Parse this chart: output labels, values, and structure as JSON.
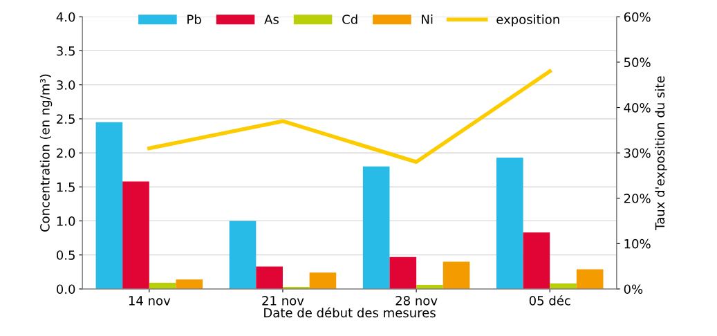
{
  "chart_data": {
    "type": "bar",
    "xlabel": "Date de début des mesures",
    "ylabel": "Concentration (en ng/m³)",
    "y2label": "Taux d'exposition du site",
    "categories": [
      "14 nov",
      "21 nov",
      "28 nov",
      "05 déc"
    ],
    "series": [
      {
        "name": "Pb",
        "color": "#29bbe8",
        "values": [
          2.45,
          1.0,
          1.8,
          1.93
        ]
      },
      {
        "name": "As",
        "color": "#e00534",
        "values": [
          1.58,
          0.33,
          0.47,
          0.83
        ]
      },
      {
        "name": "Cd",
        "color": "#b8cf0a",
        "values": [
          0.09,
          0.03,
          0.06,
          0.08
        ]
      },
      {
        "name": "Ni",
        "color": "#f49b00",
        "values": [
          0.14,
          0.24,
          0.4,
          0.29
        ]
      },
      {
        "name": "exposition",
        "type": "line",
        "axis": "y2",
        "color": "#fdcc00",
        "values": [
          31,
          37,
          28,
          48
        ]
      }
    ],
    "ylim": [
      0,
      4
    ],
    "yticks": [
      {
        "value": 0,
        "label": "0.0"
      },
      0.5,
      {
        "value": 1,
        "label": "1.0"
      },
      1.5,
      {
        "value": 2,
        "label": "2.0"
      },
      2.5,
      {
        "value": 3,
        "label": "3.0"
      },
      3.5,
      {
        "value": 4,
        "label": "4.0"
      }
    ],
    "y2lim": [
      0,
      60
    ],
    "y2ticks": [
      {
        "value": 0,
        "label": "0%"
      },
      {
        "value": 10,
        "label": "10%"
      },
      {
        "value": 20,
        "label": "20%"
      },
      {
        "value": 30,
        "label": "30%"
      },
      {
        "value": 40,
        "label": "40%"
      },
      {
        "value": 50,
        "label": "50%"
      },
      {
        "value": 60,
        "label": "60%"
      }
    ],
    "grid": "y",
    "legend": "top"
  }
}
